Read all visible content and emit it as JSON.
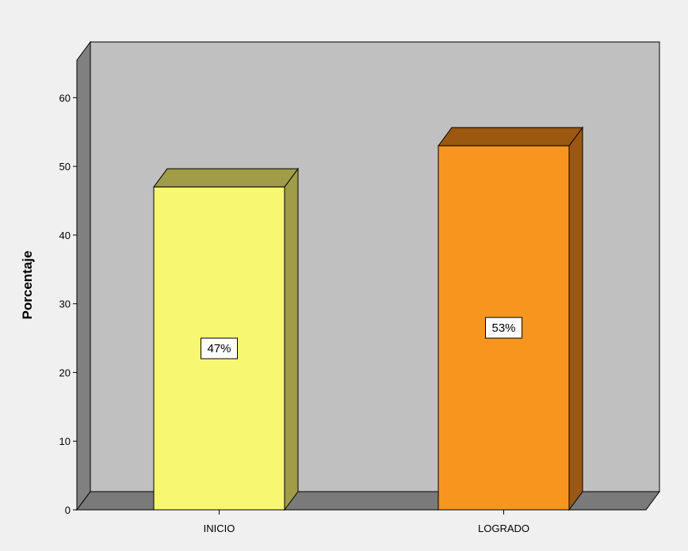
{
  "chart_data": {
    "type": "bar",
    "categories": [
      "INICIO",
      "LOGRADO"
    ],
    "values": [
      47,
      53
    ],
    "data_labels": [
      "47%",
      "53%"
    ],
    "title": "",
    "xlabel": "",
    "ylabel": "Porcentaje",
    "ylim": [
      0,
      65
    ],
    "yticks": [
      0,
      10,
      20,
      30,
      40,
      50,
      60
    ],
    "ytick_labels": [
      "0",
      "10",
      "20",
      "30",
      "40",
      "50",
      "60"
    ],
    "grid": false,
    "three_d": true,
    "colors": {
      "background": "#f0f0f0",
      "plot_back_wall": "#c0c0c0",
      "plot_side_wall": "#808080",
      "plot_floor": "#7a7a7a",
      "bars": [
        {
          "front": "#f7f772",
          "top": "#a09c48",
          "side": "#a09c48"
        },
        {
          "front": "#f7961f",
          "top": "#9b5811",
          "side": "#9b5811"
        }
      ]
    }
  }
}
